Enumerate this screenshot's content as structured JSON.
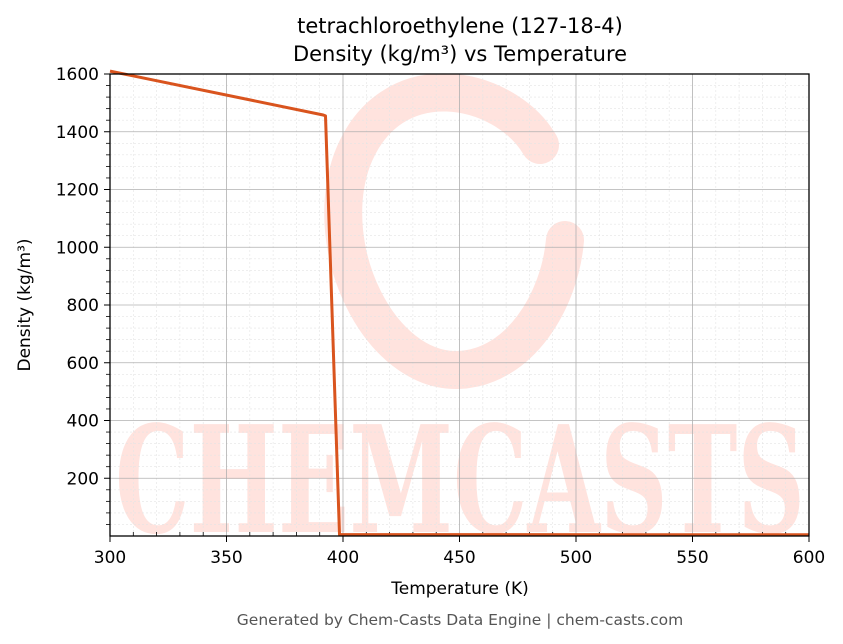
{
  "chart_data": {
    "type": "line",
    "title": "tetrachloroethylene (127-18-4)",
    "subtitle": "Density (kg/m³) vs Temperature",
    "xlabel": "Temperature (K)",
    "ylabel": "Density (kg/m³)",
    "xlim": [
      300,
      600
    ],
    "ylim": [
      0,
      1600
    ],
    "x_ticks": [
      "300",
      "350",
      "400",
      "450",
      "500",
      "550",
      "600"
    ],
    "y_ticks": [
      "200",
      "400",
      "600",
      "800",
      "1000",
      "1200",
      "1400",
      "1600"
    ],
    "grid": true,
    "series": [
      {
        "color": "#d9541e",
        "points": [
          [
            300,
            1610
          ],
          [
            391.5,
            1458
          ],
          [
            392.5,
            1455
          ],
          [
            398.5,
            5
          ],
          [
            600,
            4
          ]
        ]
      }
    ]
  },
  "watermark": {
    "text": "CHEMCASTS",
    "color": "#ffe3de"
  },
  "footer": "Generated by Chem-Casts Data Engine | chem-casts.com"
}
